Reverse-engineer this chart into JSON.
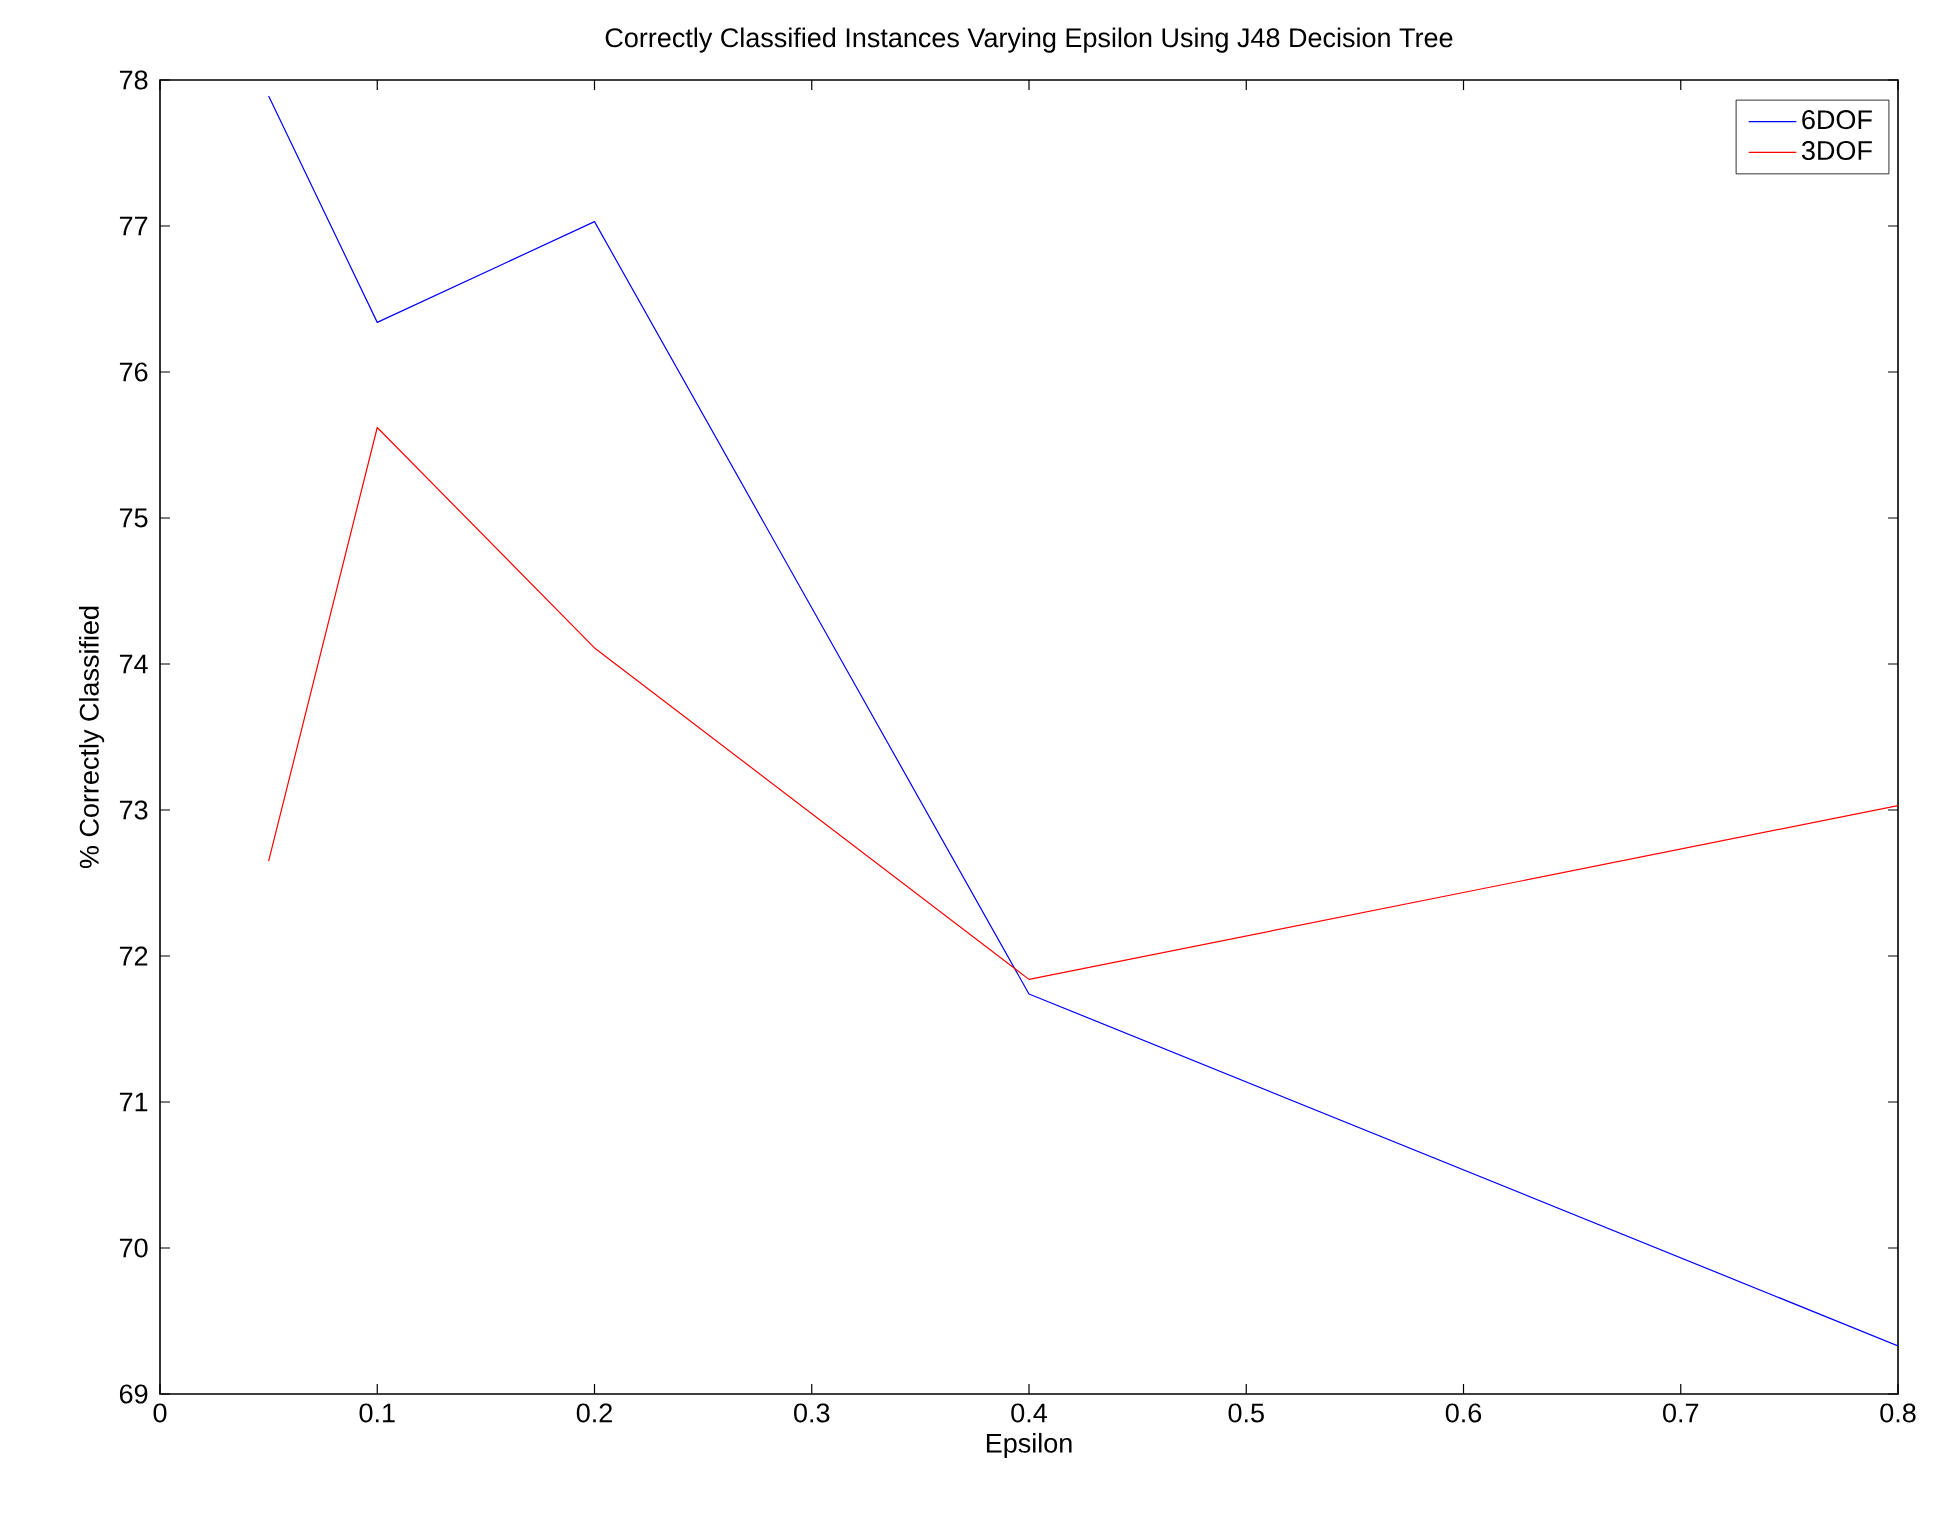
{
  "chart_data": {
    "type": "line",
    "title": "Correctly Classified Instances Varying Epsilon Using J48 Decision Tree",
    "xlabel": "Epsilon",
    "ylabel": "% Correctly Classified",
    "x": [
      0.05,
      0.1,
      0.2,
      0.4,
      0.8
    ],
    "series": [
      {
        "name": "6DOF",
        "color": "#0000ff",
        "values": [
          77.89,
          76.34,
          77.03,
          71.74,
          69.33
        ]
      },
      {
        "name": "3DOF",
        "color": "#ff0000",
        "values": [
          72.65,
          75.62,
          74.11,
          71.84,
          73.03
        ]
      }
    ],
    "xlim": [
      0,
      0.8
    ],
    "ylim": [
      69,
      78
    ],
    "xticks": [
      0,
      0.1,
      0.2,
      0.3,
      0.4,
      0.5,
      0.6,
      0.7,
      0.8
    ],
    "yticks": [
      69,
      70,
      71,
      72,
      73,
      74,
      75,
      76,
      77,
      78
    ],
    "legend": "top right",
    "grid": false,
    "marker": "none",
    "line_style": "solid"
  }
}
